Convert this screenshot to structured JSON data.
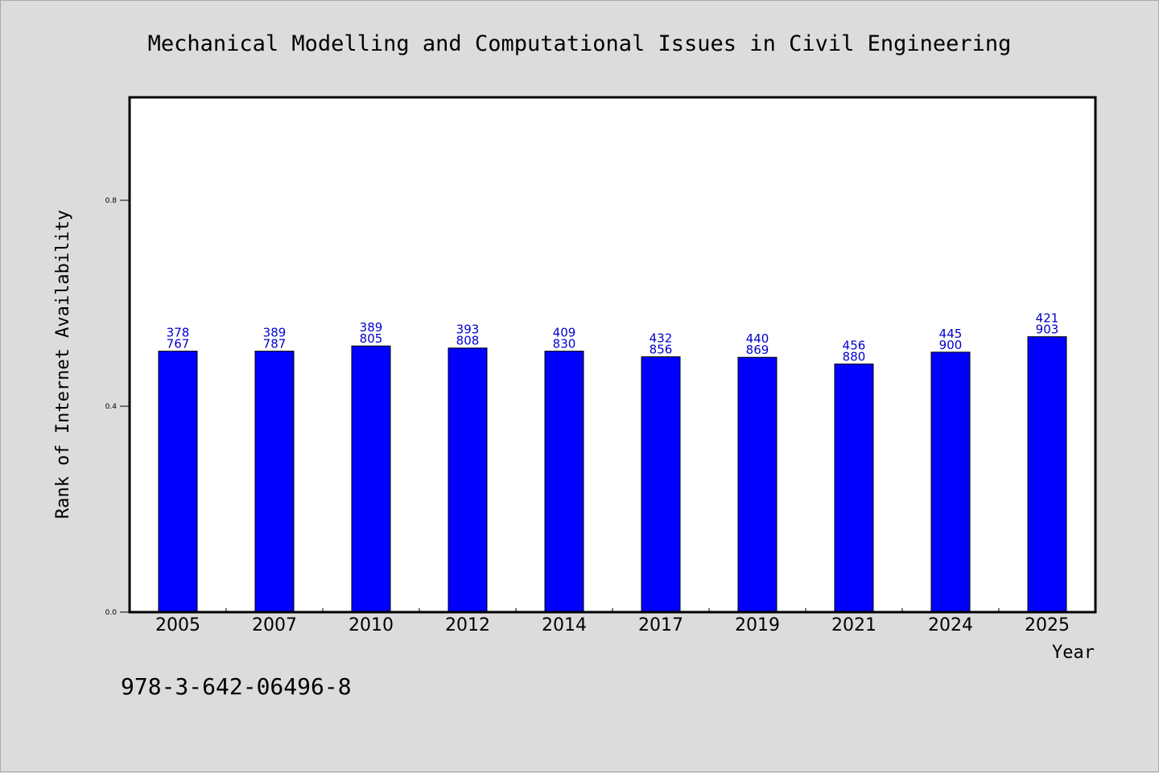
{
  "chart_data": {
    "type": "bar",
    "title": "Mechanical Modelling and Computational Issues in Civil Engineering",
    "xlabel": "Year",
    "ylabel": "Rank of Internet Availability",
    "categories": [
      "2005",
      "2007",
      "2010",
      "2012",
      "2014",
      "2017",
      "2019",
      "2021",
      "2024",
      "2025"
    ],
    "values": [
      0.507,
      0.507,
      0.517,
      0.513,
      0.507,
      0.496,
      0.495,
      0.482,
      0.505,
      0.535
    ],
    "label_top": [
      "378",
      "389",
      "389",
      "393",
      "409",
      "432",
      "440",
      "456",
      "445",
      "421"
    ],
    "label_bottom": [
      "767",
      "787",
      "805",
      "808",
      "830",
      "856",
      "869",
      "880",
      "900",
      "903"
    ],
    "ylim": [
      0,
      1.0
    ],
    "yticks": [
      0.0,
      0.4,
      0.8
    ],
    "ytick_labels": [
      "0.0",
      "0.4",
      "0.8"
    ],
    "bar_color": "#0000ff",
    "label_color": "#0000cc",
    "grid": false,
    "legend": "none"
  },
  "footnote": "978-3-642-06496-8"
}
